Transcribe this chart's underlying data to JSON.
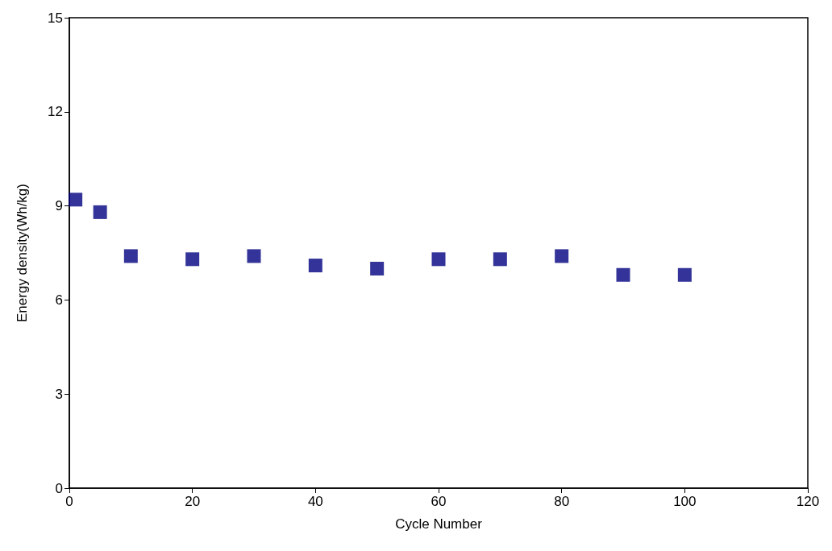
{
  "chart_data": {
    "type": "scatter",
    "xlabel": "Cycle Number",
    "ylabel": "Energy density(Wh/kg)",
    "x": [
      1,
      5,
      10,
      20,
      30,
      40,
      50,
      60,
      70,
      80,
      90,
      100
    ],
    "values": [
      9.2,
      8.8,
      7.4,
      7.3,
      7.4,
      7.1,
      7.0,
      7.3,
      7.3,
      7.4,
      6.8,
      6.8
    ],
    "color": "#000080",
    "marker": "square",
    "xlim": [
      0,
      120
    ],
    "xticks": [
      0,
      20,
      40,
      60,
      80,
      100,
      120
    ],
    "ylim": [
      0,
      15
    ],
    "yticks": [
      0,
      3,
      6,
      9,
      12,
      15
    ],
    "grid": false
  }
}
